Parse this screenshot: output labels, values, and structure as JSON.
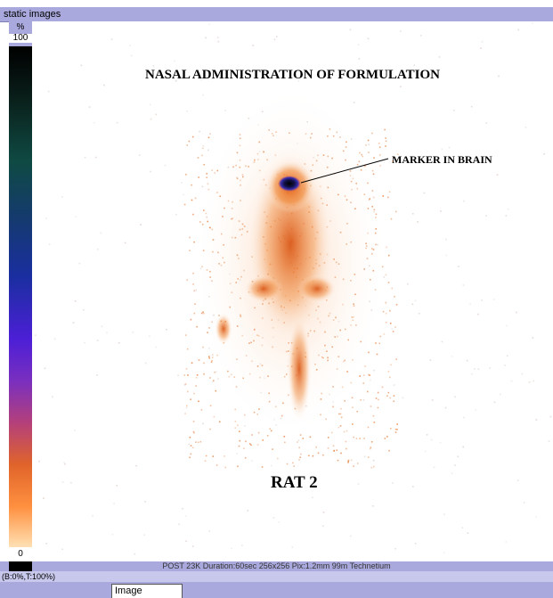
{
  "window": {
    "title": "static images"
  },
  "colorbar": {
    "unit": "%",
    "max_label": "100",
    "min_label": "0"
  },
  "image": {
    "heading": "NASAL ADMINISTRATION OF FORMULATION",
    "marker_label": "MARKER IN BRAIN",
    "subject_label": "RAT 2"
  },
  "status": {
    "acquisition_info": "POST 23K Duration:60sec 256x256 Pix:1.2mm 99m Technetium",
    "window_range": "(B:0%,T:100%)"
  },
  "tabs": [
    {
      "label": "Image"
    }
  ],
  "colors": {
    "chrome": "#a9a9dd",
    "hot_spot": "#e0641e",
    "marker": "#1a1a60"
  }
}
